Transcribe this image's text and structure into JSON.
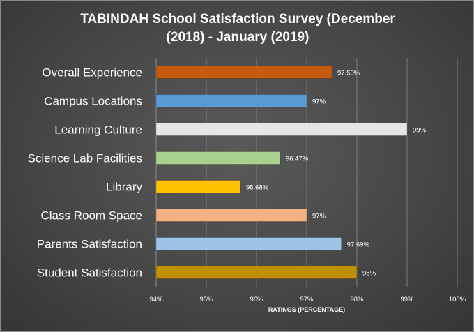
{
  "chart_data": {
    "type": "bar",
    "orientation": "horizontal",
    "title_lines": [
      "TABINDAH School Satisfaction Survey (December",
      "(2018) - January (2019)"
    ],
    "xlabel": "RATINGS (PERCENTAGE)",
    "ylabel": "",
    "xlim": [
      94,
      100
    ],
    "xticks": [
      94,
      95,
      96,
      97,
      98,
      99,
      100
    ],
    "xtick_labels": [
      "94%",
      "95%",
      "96%",
      "97%",
      "98%",
      "99%",
      "100%"
    ],
    "grid": true,
    "legend": "none",
    "categories": [
      "Overall Experience",
      "Campus Locations",
      "Learning Culture",
      "Science Lab Facilities",
      "Library",
      "Class Room Space",
      "Parents Satisfaction",
      "Student Satisfaction"
    ],
    "values": [
      97.5,
      97,
      99,
      96.47,
      95.68,
      97,
      97.69,
      98
    ],
    "data_labels": [
      "97.50%",
      "97%",
      "99%",
      "96.47%",
      "95.68%",
      "97%",
      "97.69%",
      "98%"
    ],
    "colors": [
      "#c55a11",
      "#5b9bd5",
      "#e7e6e6",
      "#a9d18e",
      "#ffc000",
      "#f4b183",
      "#9dc3e6",
      "#bf9000"
    ]
  }
}
